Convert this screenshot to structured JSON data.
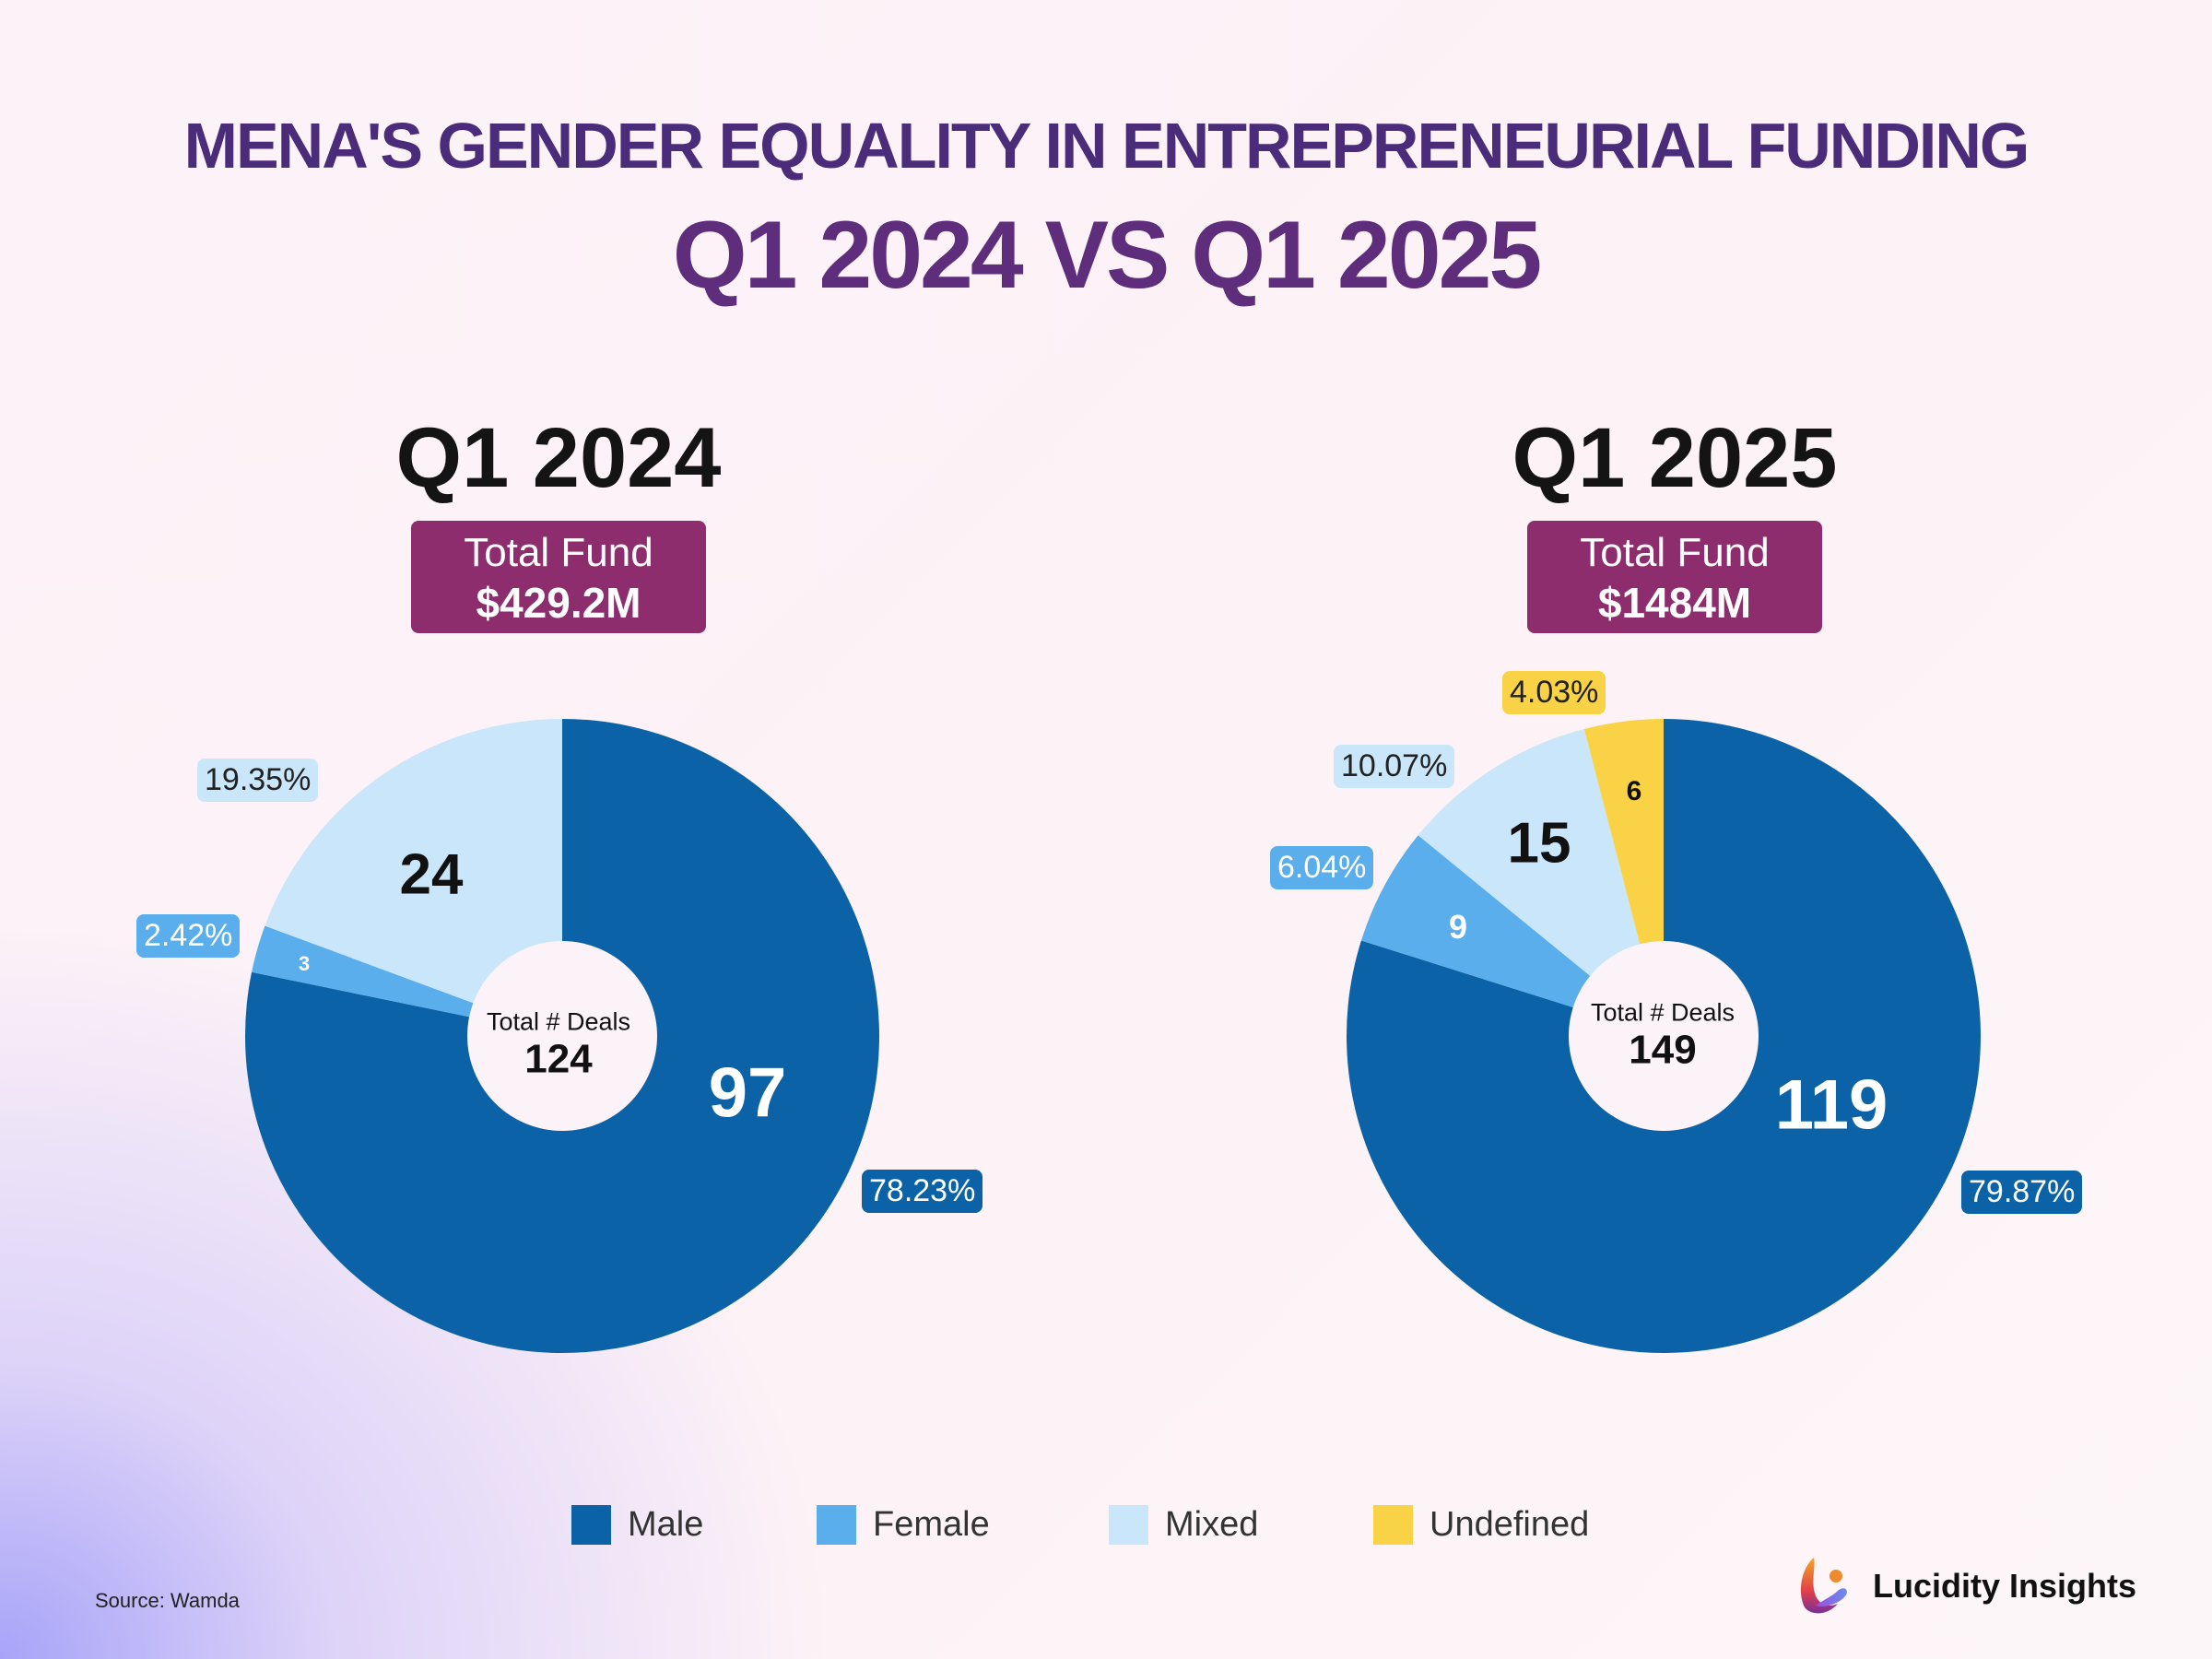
{
  "title": {
    "line1": "MENA'S GENDER EQUALITY IN ENTREPRENEURIAL FUNDING",
    "line2": "Q1 2024 VS Q1 2025"
  },
  "colors": {
    "Male": "#0c62a6",
    "Female": "#5baeec",
    "Mixed": "#c9e6fb",
    "Undefined": "#f9d345",
    "fund_box": "#8e2d6e"
  },
  "chart_data": [
    {
      "type": "pie",
      "title": "Q1 2024",
      "total_fund_label": "Total Fund",
      "total_fund": "$429.2M",
      "center_label": "Total # Deals",
      "total_deals": "124",
      "categories": [
        "Male",
        "Female",
        "Mixed"
      ],
      "values": [
        97,
        3,
        24
      ],
      "percent_labels": [
        "78.23%",
        "2.42%",
        "19.35%"
      ]
    },
    {
      "type": "pie",
      "title": "Q1 2025",
      "total_fund_label": "Total Fund",
      "total_fund": "$1484M",
      "center_label": "Total # Deals",
      "total_deals": "149",
      "categories": [
        "Male",
        "Female",
        "Mixed",
        "Undefined"
      ],
      "values": [
        119,
        9,
        15,
        6
      ],
      "percent_labels": [
        "79.87%",
        "6.04%",
        "10.07%",
        "4.03%"
      ]
    }
  ],
  "legend": [
    {
      "label": "Male",
      "color": "#0c62a6"
    },
    {
      "label": "Female",
      "color": "#5baeec"
    },
    {
      "label": "Mixed",
      "color": "#c9e6fb"
    },
    {
      "label": "Undefined",
      "color": "#f9d345"
    }
  ],
  "legend_placement": "bottom",
  "source": "Source: Wamda",
  "brand": "Lucidity Insights"
}
